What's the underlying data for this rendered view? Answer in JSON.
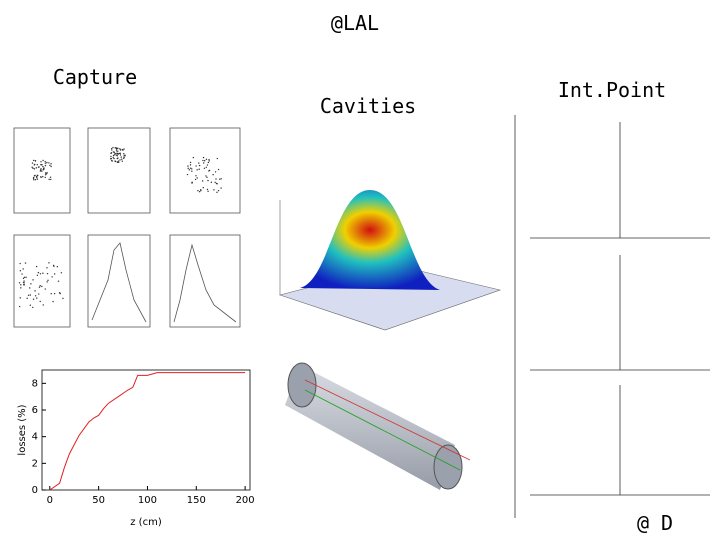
{
  "slide": {
    "title": "@LAL",
    "labels": [
      "Capture",
      "Cavities",
      "Int.Point"
    ],
    "corner_text": "@ D"
  },
  "chart_data": {
    "type": "line",
    "x_label": "z (cm)",
    "y_label": "losses (%)",
    "x": [
      0,
      10,
      15,
      20,
      25,
      30,
      35,
      40,
      45,
      50,
      55,
      60,
      70,
      80,
      85,
      90,
      100,
      110,
      200
    ],
    "series": [
      {
        "name": "losses",
        "color": "#e02020",
        "values": [
          0,
          0.5,
          1.7,
          2.7,
          3.4,
          4.1,
          4.6,
          5.1,
          5.4,
          5.6,
          6.1,
          6.5,
          7.0,
          7.5,
          7.7,
          8.6,
          8.6,
          8.8,
          8.8
        ]
      }
    ],
    "xlim": [
      -8,
      205
    ],
    "ylim": [
      0,
      9
    ],
    "xticks": [
      0,
      50,
      100,
      150,
      200
    ],
    "yticks": [
      0,
      2,
      4,
      6,
      8
    ]
  }
}
